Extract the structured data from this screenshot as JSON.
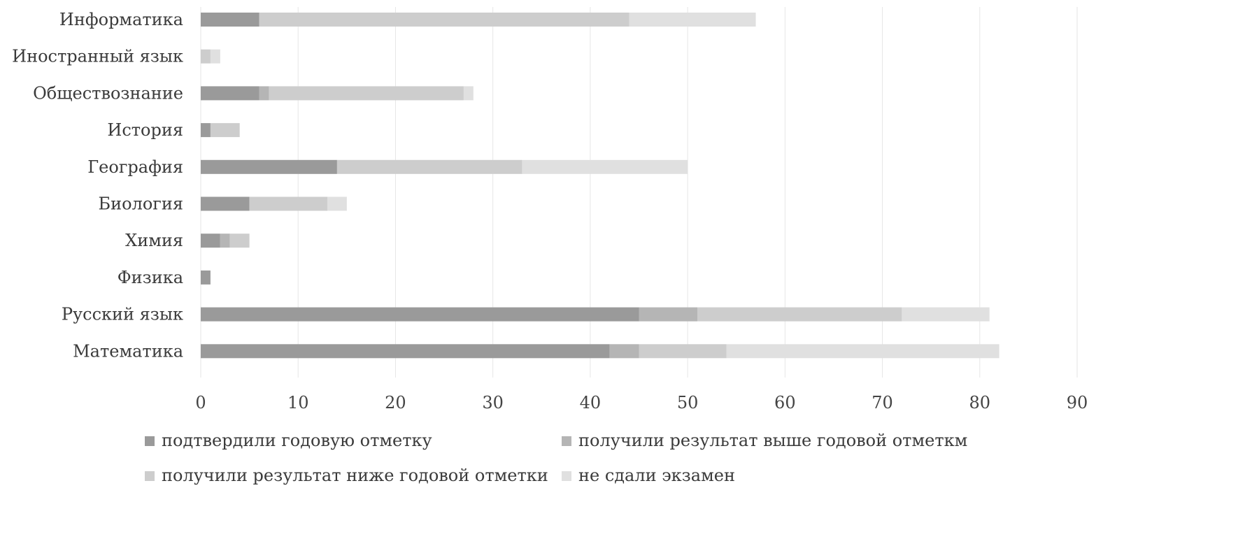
{
  "chart_data": {
    "type": "bar",
    "orientation": "horizontal",
    "stacked": true,
    "categories": [
      "Информатика",
      "Иностранный язык",
      "Обществознание",
      "История",
      "География",
      "Биология",
      "Химия",
      "Физика",
      "Русский язык",
      "Математика"
    ],
    "series": [
      {
        "name": "подтвердили годовую отметку",
        "color": "#9a9a9a",
        "values": [
          6,
          0,
          6,
          1,
          14,
          5,
          2,
          1,
          45,
          42
        ]
      },
      {
        "name": "получили результат выше годовой отметкм",
        "color": "#b5b5b5",
        "values": [
          0,
          0,
          1,
          0,
          0,
          0,
          1,
          0,
          6,
          3
        ]
      },
      {
        "name": "получили результат ниже годовой отметки",
        "color": "#cdcdcd",
        "values": [
          38,
          1,
          20,
          3,
          19,
          8,
          2,
          0,
          21,
          9
        ]
      },
      {
        "name": "не сдали экзамен",
        "color": "#e0e0e0",
        "values": [
          13,
          1,
          1,
          0,
          17,
          2,
          0,
          0,
          9,
          28
        ]
      }
    ],
    "xlim": [
      0,
      90
    ],
    "xticks": [
      "0",
      "10",
      "20",
      "30",
      "40",
      "50",
      "60",
      "70",
      "80",
      "90"
    ],
    "grid": true,
    "legend_position": "bottom"
  }
}
